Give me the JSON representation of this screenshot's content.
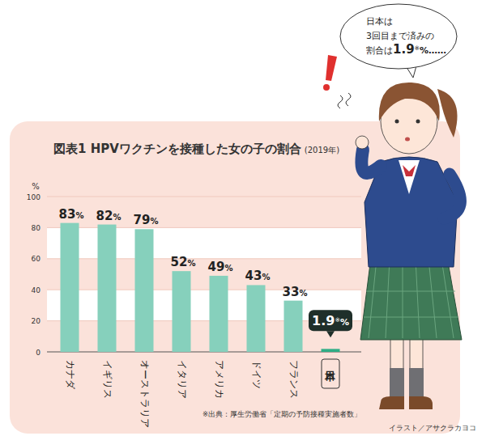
{
  "chart_data": {
    "type": "bar",
    "title": "図表1 HPVワクチンを接種した女の子の割合",
    "subtitle": "(2019年)",
    "y_label": "%",
    "categories": [
      "カナダ",
      "イギリス",
      "オーストラリア",
      "イタリア",
      "アメリカ",
      "ドイツ",
      "フランス",
      "日本"
    ],
    "values": [
      83,
      82,
      79,
      52,
      49,
      43,
      33,
      1.9
    ],
    "value_labels": [
      "83%",
      "82%",
      "79%",
      "52%",
      "49%",
      "43%",
      "33%",
      "1.9※%"
    ],
    "color": "#86d0bc",
    "ylim": [
      0,
      100
    ],
    "yticks": [
      0,
      20,
      40,
      60,
      80,
      100
    ],
    "grid": true,
    "data_labels": true,
    "annotations": [
      "日本は",
      "3回目まで済みの",
      "割合は1.9※%……"
    ],
    "source": "※出典：厚生労働省「定期の予防接種実施者数」",
    "credit": "イラスト／アサクラカヨコ"
  }
}
